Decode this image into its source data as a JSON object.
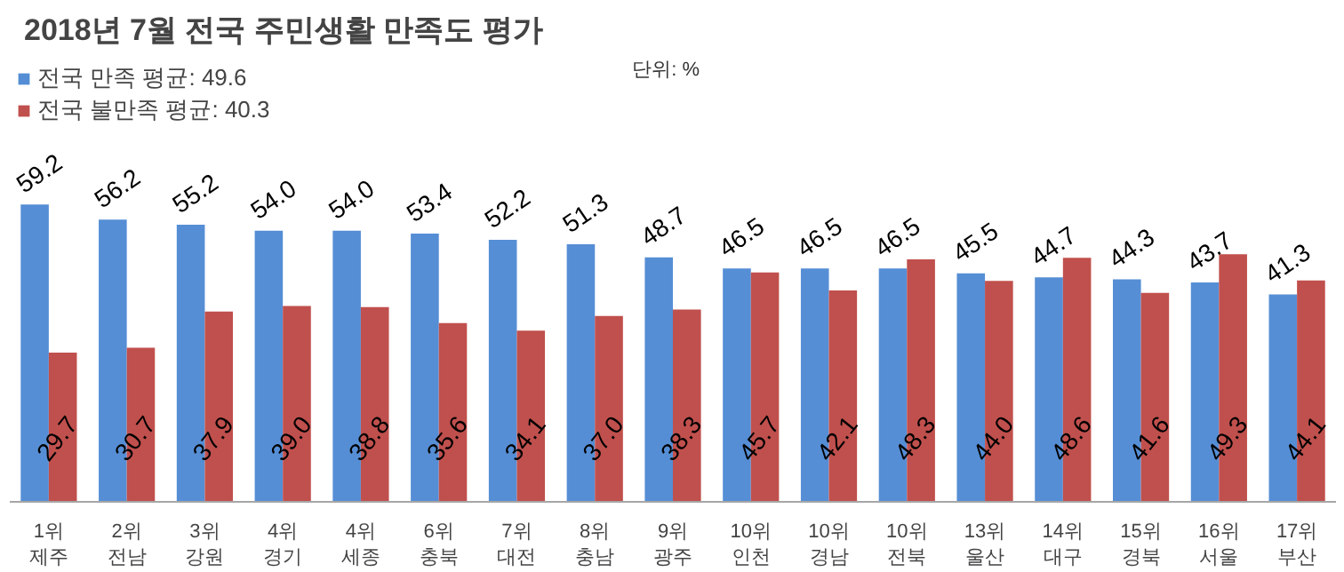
{
  "chart_data": {
    "type": "bar",
    "title": "2018년 7월 전국 주민생활 만족도 평가",
    "annotations": [
      "단위: %"
    ],
    "categories": [
      "1위\n제주",
      "2위\n전남",
      "3위\n강원",
      "4위\n경기",
      "4위\n세종",
      "6위\n충북",
      "7위\n대전",
      "8위\n충남",
      "9위\n광주",
      "10위\n인천",
      "10위\n경남",
      "10위\n전북",
      "13위\n울산",
      "14위\n대구",
      "15위\n경북",
      "16위\n서울",
      "17위\n부산"
    ],
    "series": [
      {
        "name": "전국 만족 평균: 49.6",
        "color": "#558ed5",
        "values": [
          59.2,
          56.2,
          55.2,
          54.0,
          54.0,
          53.4,
          52.2,
          51.3,
          48.7,
          46.5,
          46.5,
          46.5,
          45.5,
          44.7,
          44.3,
          43.7,
          41.3
        ],
        "value_labels": [
          "59.2",
          "56.2",
          "55.2",
          "54.0",
          "54.0",
          "53.4",
          "52.2",
          "51.3",
          "48.7",
          "46.5",
          "46.5",
          "46.5",
          "45.5",
          "44.7",
          "44.3",
          "43.7",
          "41.3"
        ]
      },
      {
        "name": "전국 불만족 평균: 40.3",
        "color": "#c0504d",
        "values": [
          29.7,
          30.7,
          37.9,
          39.0,
          38.8,
          35.6,
          34.1,
          37.0,
          38.3,
          45.7,
          42.1,
          48.3,
          44.0,
          48.6,
          41.6,
          49.3,
          44.1
        ],
        "value_labels": [
          "29.7",
          "30.7",
          "37.9",
          "39.0",
          "38.8",
          "35.6",
          "34.1",
          "37.0",
          "38.3",
          "45.7",
          "42.1",
          "48.3",
          "44.0",
          "48.6",
          "41.6",
          "49.3",
          "44.1"
        ]
      }
    ],
    "legend": "top left",
    "grid": false,
    "tick_labels": "x"
  }
}
